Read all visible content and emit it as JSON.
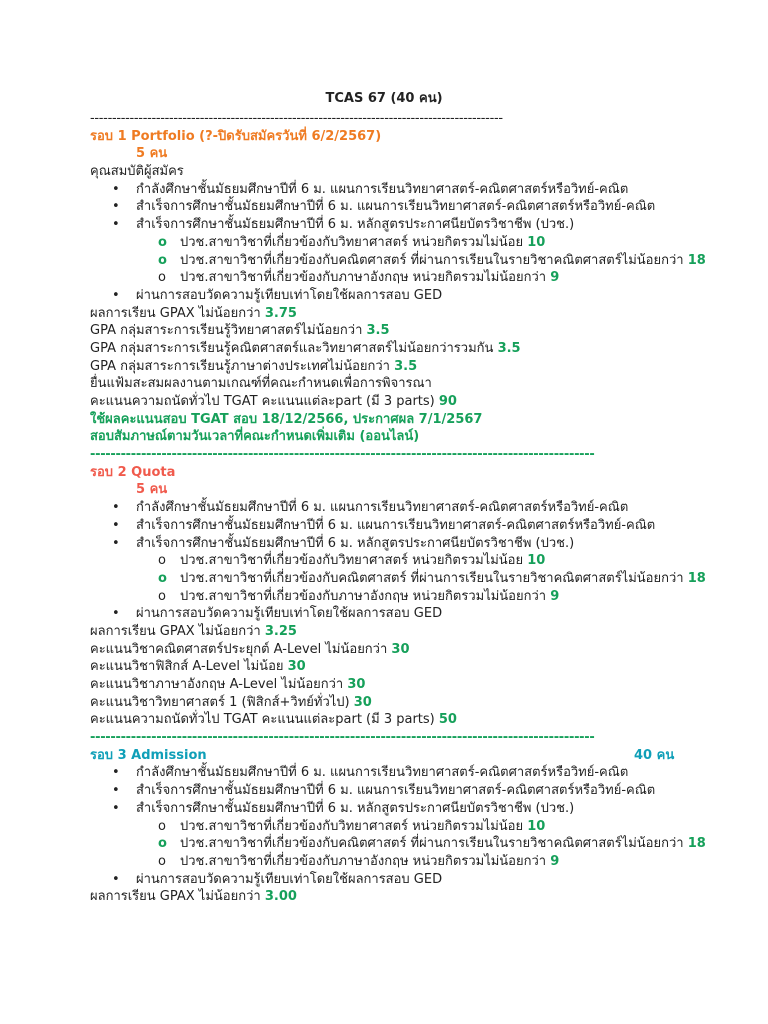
{
  "title": "TCAS 67 (40 คน)",
  "dashes_short": "----------------------------------------------------------------------------------------------",
  "dashes_long": "---------------------------------------------------------------------------------------------------",
  "round1": {
    "heading": "รอบ 1 Portfolio (?-ปิดรับสมัครวันที่ 6/2/2567)",
    "seats": "5 คน",
    "qual_label": "คุณสมบัติผู้สมัคร",
    "bullets": [
      "กำลังศึกษาชั้นมัธยมศึกษาปีที่ 6 ม. แผนการเรียนวิทยาศาสตร์-คณิตศาสตร์หรือวิทย์-คณิต",
      "สำเร็จการศึกษาชั้นมัธยมศึกษาปีที่ 6 ม. แผนการเรียนวิทยาศาสตร์-คณิตศาสตร์หรือวิทย์-คณิต",
      "สำเร็จการศึกษาชั้นมัธยมศึกษาปีที่ 6 ม. หลักสูตรประกาศนียบัตรวิชาชีพ (ปวช.)"
    ],
    "sub": [
      {
        "text": "ปวช.สาขาวิชาที่เกี่ยวข้องกับวิทยาศาสตร์ หน่วยกิตรวมไม่น้อย",
        "value": "10"
      },
      {
        "text": "ปวช.สาขาวิชาที่เกี่ยวข้องกับคณิตศาสตร์ ที่ผ่านการเรียนในรายวิชาคณิตศาสตร์ไม่น้อยกว่า",
        "value": "18"
      },
      {
        "text": "ปวช.สาขาวิชาที่เกี่ยวข้องกับภาษาอังกฤษ หน่วยกิตรวมไม่น้อยกว่า",
        "value": "9"
      }
    ],
    "bullet_ged": "ผ่านการสอบวัดความรู้เทียบเท่าโดยใช้ผลการสอบ GED",
    "reqs": [
      {
        "label": "ผลการเรียน GPAX ไม่น้อยกว่า",
        "value": "3.75"
      },
      {
        "label": "GPA กลุ่มสาระการเรียนรู้วิทยาศาสตร์ไม่น้อยกว่า",
        "value": "3.5"
      },
      {
        "label": "GPA กลุ่มสาระการเรียนรู้คณิตศาสตร์และวิทยาศาสตร์ไม่น้อยกว่ารวมกัน",
        "value": "3.5"
      },
      {
        "label": "GPA กลุ่มสาระการเรียนรู้ภาษาต่างประเทศไม่น้อยกว่า",
        "value": "3.5"
      }
    ],
    "portfolio_note": "ยื่นแฟ้มสะสมผลงานตามเกณฑ์ที่คณะกำหนดเพื่อการพิจารณา",
    "tgat": {
      "label": "คะแนนความถนัดทั่วไป TGAT คะแนนแต่ละpart (มี 3 parts)",
      "value": "90"
    },
    "tgat_dates": "ใช้ผลคะแนนสอบ TGAT สอบ 18/12/2566, ประกาศผล 7/1/2567",
    "interview": "สอบสัมภาษณ์ตามวันเวลาที่คณะกำหนดเพิ่มเติม (ออนไลน์)"
  },
  "round2": {
    "heading": "รอบ 2 Quota",
    "seats": "5 คน",
    "bullets": [
      "กำลังศึกษาชั้นมัธยมศึกษาปีที่ 6 ม. แผนการเรียนวิทยาศาสตร์-คณิตศาสตร์หรือวิทย์-คณิต",
      "สำเร็จการศึกษาชั้นมัธยมศึกษาปีที่ 6 ม. แผนการเรียนวิทยาศาสตร์-คณิตศาสตร์หรือวิทย์-คณิต",
      "สำเร็จการศึกษาชั้นมัธยมศึกษาปีที่ 6 ม. หลักสูตรประกาศนียบัตรวิชาชีพ (ปวช.)"
    ],
    "sub": [
      {
        "text": "ปวช.สาขาวิชาที่เกี่ยวข้องกับวิทยาศาสตร์ หน่วยกิตรวมไม่น้อย",
        "value": "10"
      },
      {
        "text": "ปวช.สาขาวิชาที่เกี่ยวข้องกับคณิตศาสตร์ ที่ผ่านการเรียนในรายวิชาคณิตศาสตร์ไม่น้อยกว่า",
        "value": "18"
      },
      {
        "text": "ปวช.สาขาวิชาที่เกี่ยวข้องกับภาษาอังกฤษ หน่วยกิตรวมไม่น้อยกว่า",
        "value": "9"
      }
    ],
    "bullet_ged": "ผ่านการสอบวัดความรู้เทียบเท่าโดยใช้ผลการสอบ GED",
    "reqs": [
      {
        "label": "ผลการเรียน GPAX ไม่น้อยกว่า",
        "value": "3.25"
      },
      {
        "label": "คะแนนวิชาคณิตศาสตร์ประยุกต์ A-Level ไม่น้อยกว่า",
        "value": "30"
      },
      {
        "label": "คะแนนวิชาฟิสิกส์ A-Level ไม่น้อย",
        "value": "30"
      },
      {
        "label": "คะแนนวิชาภาษาอังกฤษ A-Level ไม่น้อยกว่า",
        "value": "30"
      },
      {
        "label": "คะแนนวิชาวิทยาศาสตร์ 1 (ฟิสิกส์+วิทย์ทั่วไป)",
        "value": "30"
      },
      {
        "label": "คะแนนความถนัดทั่วไป TGAT คะแนนแต่ละpart (มี 3 parts)",
        "value": "50"
      }
    ]
  },
  "round3": {
    "heading": "รอบ 3 Admission",
    "seats": "40 คน",
    "bullets": [
      "กำลังศึกษาชั้นมัธยมศึกษาปีที่ 6 ม. แผนการเรียนวิทยาศาสตร์-คณิตศาสตร์หรือวิทย์-คณิต",
      "สำเร็จการศึกษาชั้นมัธยมศึกษาปีที่ 6 ม. แผนการเรียนวิทยาศาสตร์-คณิตศาสตร์หรือวิทย์-คณิต",
      "สำเร็จการศึกษาชั้นมัธยมศึกษาปีที่ 6 ม. หลักสูตรประกาศนียบัตรวิชาชีพ (ปวช.)"
    ],
    "sub": [
      {
        "text": "ปวช.สาขาวิชาที่เกี่ยวข้องกับวิทยาศาสตร์ หน่วยกิตรวมไม่น้อย",
        "value": "10"
      },
      {
        "text": "ปวช.สาขาวิชาที่เกี่ยวข้องกับคณิตศาสตร์ ที่ผ่านการเรียนในรายวิชาคณิตศาสตร์ไม่น้อยกว่า",
        "value": "18"
      },
      {
        "text": "ปวช.สาขาวิชาที่เกี่ยวข้องกับภาษาอังกฤษ หน่วยกิตรวมไม่น้อยกว่า",
        "value": "9"
      }
    ],
    "bullet_ged": "ผ่านการสอบวัดความรู้เทียบเท่าโดยใช้ผลการสอบ GED",
    "reqs": [
      {
        "label": "ผลการเรียน GPAX ไม่น้อยกว่า",
        "value": "3.00"
      }
    ]
  }
}
